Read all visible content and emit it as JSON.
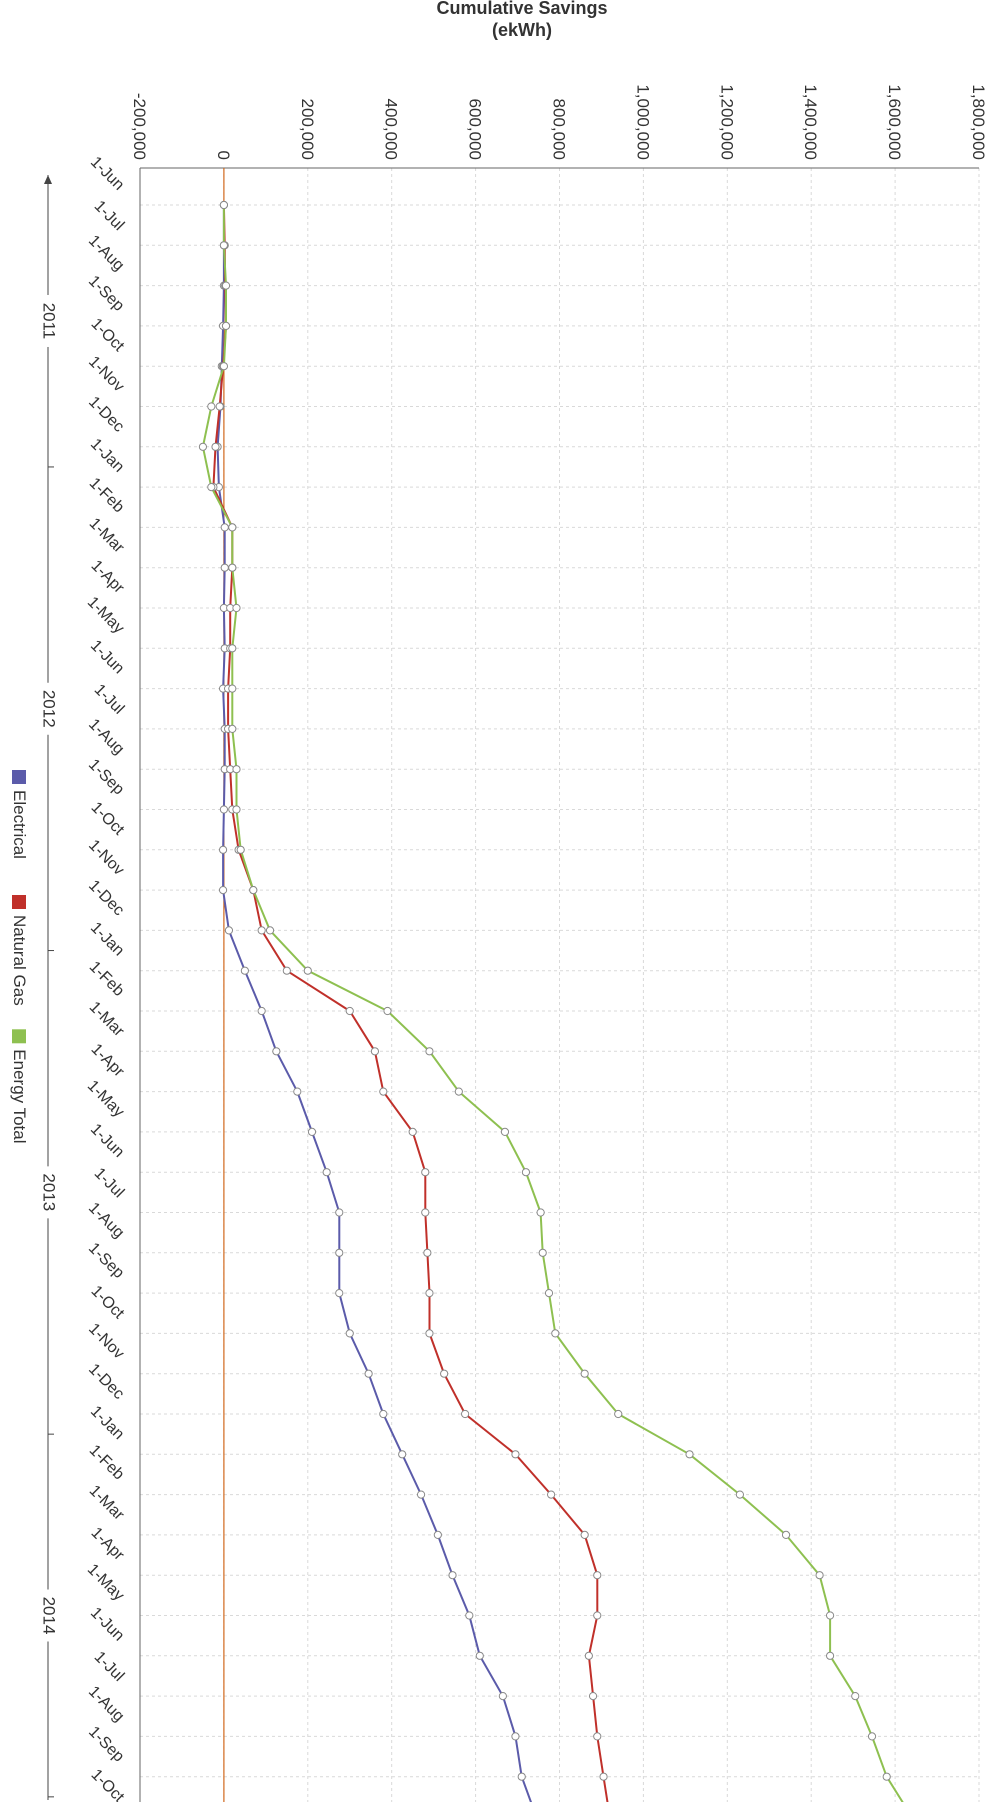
{
  "chart_data": {
    "type": "line",
    "title": "Cumulative Savings",
    "subtitle": "(ekWh)",
    "ylim": [
      -200000,
      1800000
    ],
    "y_ticks": [
      -200000,
      0,
      200000,
      400000,
      600000,
      800000,
      1000000,
      1200000,
      1400000,
      1600000,
      1800000
    ],
    "y_tick_labels": [
      "-200,000",
      "0",
      "200,000",
      "400,000",
      "600,000",
      "800,000",
      "1,000,000",
      "1,200,000",
      "1,400,000",
      "1,600,000",
      "1,800,000"
    ],
    "x": [
      "1-Jun",
      "1-Jul",
      "1-Aug",
      "1-Sep",
      "1-Oct",
      "1-Nov",
      "1-Dec",
      "1-Jan",
      "1-Feb",
      "1-Mar",
      "1-Apr",
      "1-May",
      "1-Jun",
      "1-Jul",
      "1-Aug",
      "1-Sep",
      "1-Oct",
      "1-Nov",
      "1-Dec",
      "1-Jan",
      "1-Feb",
      "1-Mar",
      "1-Apr",
      "1-May",
      "1-Jun",
      "1-Jul",
      "1-Aug",
      "1-Sep",
      "1-Oct",
      "1-Nov",
      "1-Dec",
      "1-Jan",
      "1-Feb",
      "1-Mar",
      "1-Apr",
      "1-May",
      "1-Jun",
      "1-Jul",
      "1-Aug",
      "1-Sep",
      "1-Oct"
    ],
    "year_groups": [
      {
        "label": "2011",
        "start": 0,
        "end": 7
      },
      {
        "label": "2012",
        "start": 7,
        "end": 19
      },
      {
        "label": "2013",
        "start": 19,
        "end": 31
      },
      {
        "label": "2014",
        "start": 31,
        "end": 40
      }
    ],
    "grid": true,
    "legend": "bottom",
    "series": [
      {
        "name": "Electrical",
        "color": "#5b5baa",
        "values": [
          0,
          0,
          0,
          -2000,
          -5000,
          -8000,
          -15000,
          -12000,
          2000,
          2000,
          0,
          2000,
          -2000,
          2000,
          2000,
          0,
          -2000,
          -2000,
          12000,
          50000,
          90000,
          125000,
          175000,
          210000,
          245000,
          275000,
          275000,
          275000,
          300000,
          345000,
          380000,
          425000,
          470000,
          510000,
          545000,
          585000,
          610000,
          665000,
          695000,
          710000,
          745000
        ]
      },
      {
        "name": "Natural Gas",
        "color": "#c0302a",
        "values": [
          0,
          2000,
          3000,
          5000,
          -2000,
          -10000,
          -20000,
          -25000,
          20000,
          20000,
          15000,
          15000,
          10000,
          10000,
          15000,
          20000,
          35000,
          70000,
          90000,
          150000,
          300000,
          360000,
          380000,
          450000,
          480000,
          480000,
          485000,
          490000,
          490000,
          525000,
          575000,
          695000,
          780000,
          860000,
          890000,
          890000,
          870000,
          880000,
          890000,
          905000,
          920000
        ]
      },
      {
        "name": "Energy Total",
        "color": "#8ec050",
        "values": [
          0,
          0,
          5000,
          5000,
          0,
          -30000,
          -50000,
          -30000,
          20000,
          20000,
          30000,
          20000,
          20000,
          20000,
          30000,
          30000,
          40000,
          70000,
          110000,
          200000,
          390000,
          490000,
          560000,
          670000,
          720000,
          755000,
          760000,
          775000,
          790000,
          860000,
          940000,
          1110000,
          1230000,
          1340000,
          1420000,
          1445000,
          1445000,
          1505000,
          1545000,
          1580000,
          1640000
        ]
      }
    ]
  }
}
